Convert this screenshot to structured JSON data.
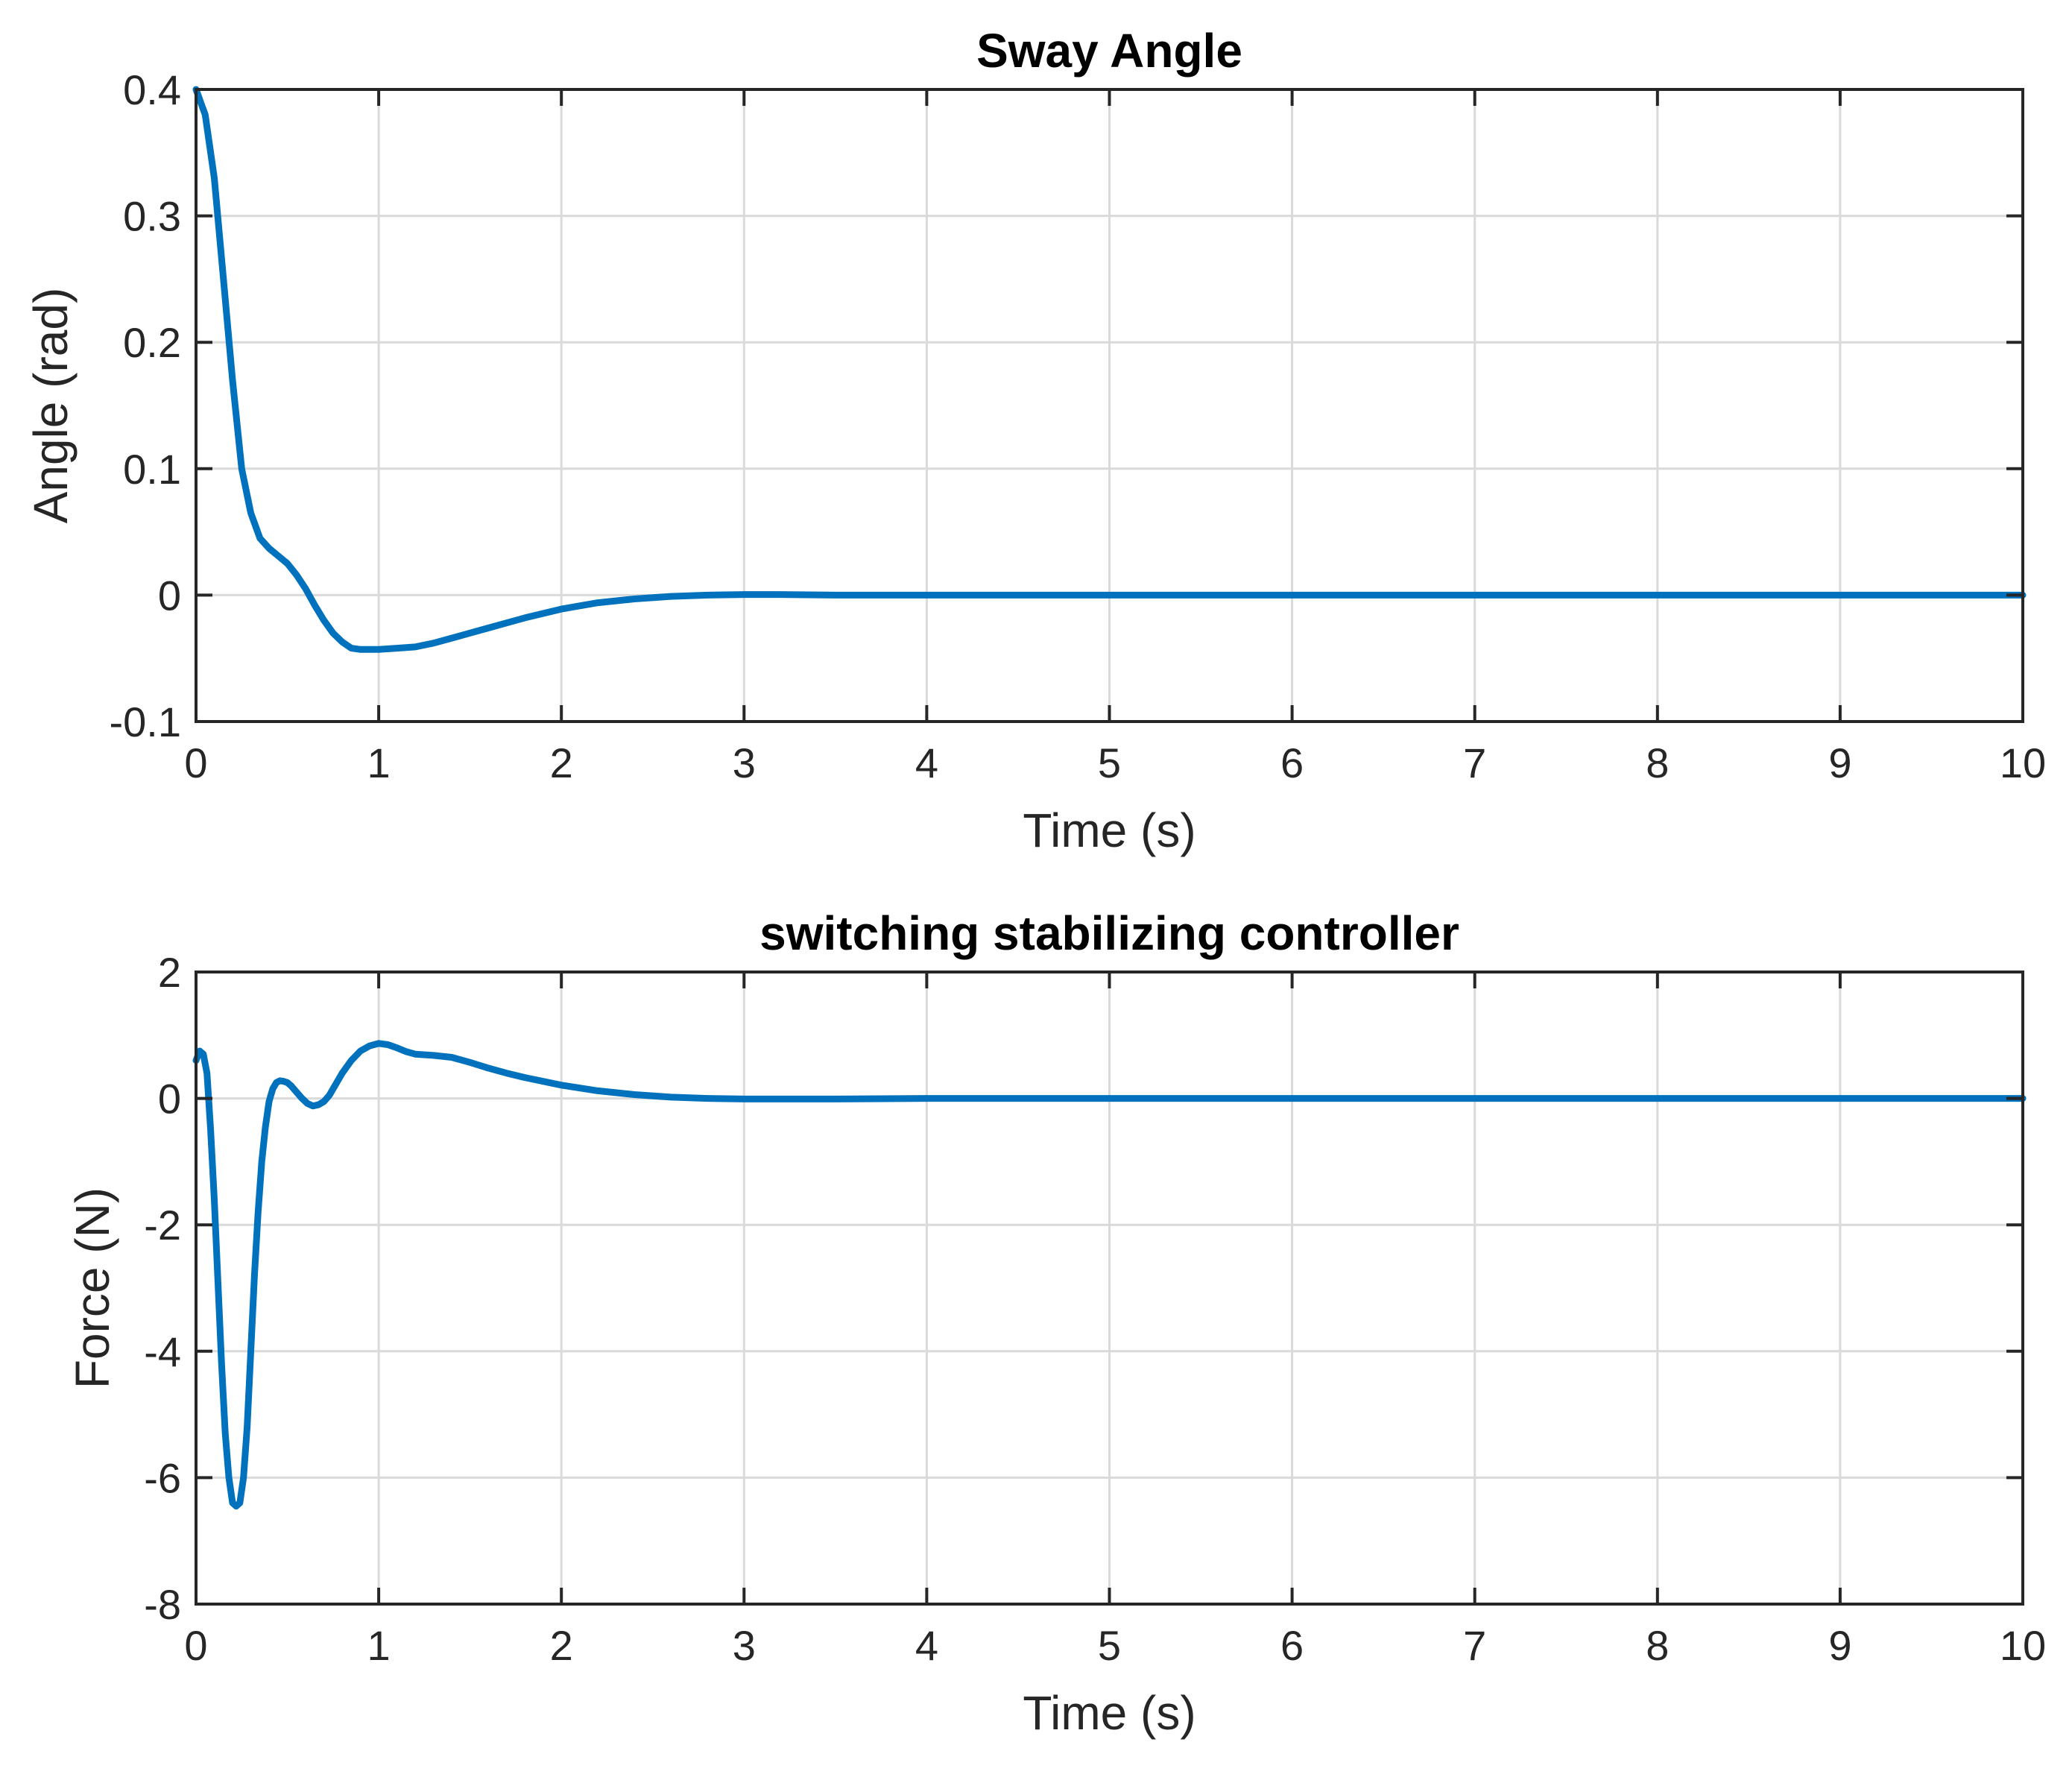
{
  "chart_data": [
    {
      "type": "line",
      "title": "Sway Angle",
      "xlabel": "Time (s)",
      "ylabel": "Angle (rad)",
      "xlim": [
        0,
        10
      ],
      "ylim": [
        -0.1,
        0.4
      ],
      "xticks": [
        "0",
        "1",
        "2",
        "3",
        "4",
        "5",
        "6",
        "7",
        "8",
        "9",
        "10"
      ],
      "yticks": [
        "-0.1",
        "0",
        "0.1",
        "0.2",
        "0.3",
        "0.4"
      ],
      "grid": true,
      "color": "#0072BD",
      "series": [
        {
          "x": [
            0,
            0.05,
            0.1,
            0.15,
            0.2,
            0.25,
            0.3,
            0.35,
            0.4,
            0.45,
            0.5,
            0.55,
            0.6,
            0.65,
            0.7,
            0.75,
            0.8,
            0.85,
            0.9,
            1.0,
            1.1,
            1.2,
            1.3,
            1.4,
            1.5,
            1.6,
            1.7,
            1.8,
            2.0,
            2.2,
            2.4,
            2.6,
            2.8,
            3.0,
            3.2,
            3.5,
            4.0,
            5.0,
            6.0,
            7.0,
            8.0,
            9.0,
            10.0
          ],
          "y": [
            0.4,
            0.38,
            0.33,
            0.25,
            0.17,
            0.1,
            0.065,
            0.045,
            0.037,
            0.031,
            0.025,
            0.016,
            0.005,
            -0.008,
            -0.02,
            -0.03,
            -0.037,
            -0.042,
            -0.043,
            -0.043,
            -0.042,
            -0.041,
            -0.038,
            -0.034,
            -0.03,
            -0.026,
            -0.022,
            -0.018,
            -0.011,
            -0.006,
            -0.003,
            -0.001,
            0.0,
            0.0005,
            0.0005,
            0.0,
            0.0,
            0.0,
            0.0,
            0.0,
            0.0,
            0.0,
            0.0
          ]
        }
      ]
    },
    {
      "type": "line",
      "title": "switching stabilizing controller",
      "xlabel": "Time (s)",
      "ylabel": "Force (N)",
      "xlim": [
        0,
        10
      ],
      "ylim": [
        -8,
        2
      ],
      "xticks": [
        "0",
        "1",
        "2",
        "3",
        "4",
        "5",
        "6",
        "7",
        "8",
        "9",
        "10"
      ],
      "yticks": [
        "-8",
        "-6",
        "-4",
        "-2",
        "0",
        "2"
      ],
      "grid": true,
      "color": "#0072BD",
      "series": [
        {
          "x": [
            0,
            0.02,
            0.04,
            0.06,
            0.08,
            0.1,
            0.12,
            0.14,
            0.16,
            0.18,
            0.2,
            0.22,
            0.24,
            0.26,
            0.28,
            0.3,
            0.32,
            0.34,
            0.36,
            0.38,
            0.4,
            0.42,
            0.44,
            0.46,
            0.48,
            0.5,
            0.52,
            0.55,
            0.58,
            0.61,
            0.64,
            0.67,
            0.7,
            0.73,
            0.76,
            0.8,
            0.85,
            0.9,
            0.95,
            1.0,
            1.05,
            1.1,
            1.15,
            1.2,
            1.3,
            1.4,
            1.5,
            1.6,
            1.7,
            1.8,
            2.0,
            2.2,
            2.4,
            2.6,
            2.8,
            3.0,
            3.5,
            4.0,
            5.0,
            6.0,
            7.0,
            8.0,
            9.0,
            10.0
          ],
          "y": [
            0.6,
            0.75,
            0.7,
            0.4,
            -0.5,
            -1.6,
            -2.9,
            -4.2,
            -5.3,
            -6.0,
            -6.4,
            -6.45,
            -6.4,
            -6.0,
            -5.2,
            -4.0,
            -2.8,
            -1.8,
            -1.0,
            -0.45,
            -0.05,
            0.15,
            0.25,
            0.28,
            0.27,
            0.25,
            0.2,
            0.1,
            0.0,
            -0.08,
            -0.12,
            -0.1,
            -0.05,
            0.05,
            0.2,
            0.4,
            0.6,
            0.75,
            0.83,
            0.87,
            0.85,
            0.8,
            0.74,
            0.7,
            0.68,
            0.65,
            0.57,
            0.48,
            0.4,
            0.33,
            0.21,
            0.12,
            0.06,
            0.02,
            0.0,
            -0.01,
            -0.01,
            0.0,
            0.0,
            0.0,
            0.0,
            0.0,
            0.0,
            0.0
          ]
        }
      ]
    }
  ]
}
